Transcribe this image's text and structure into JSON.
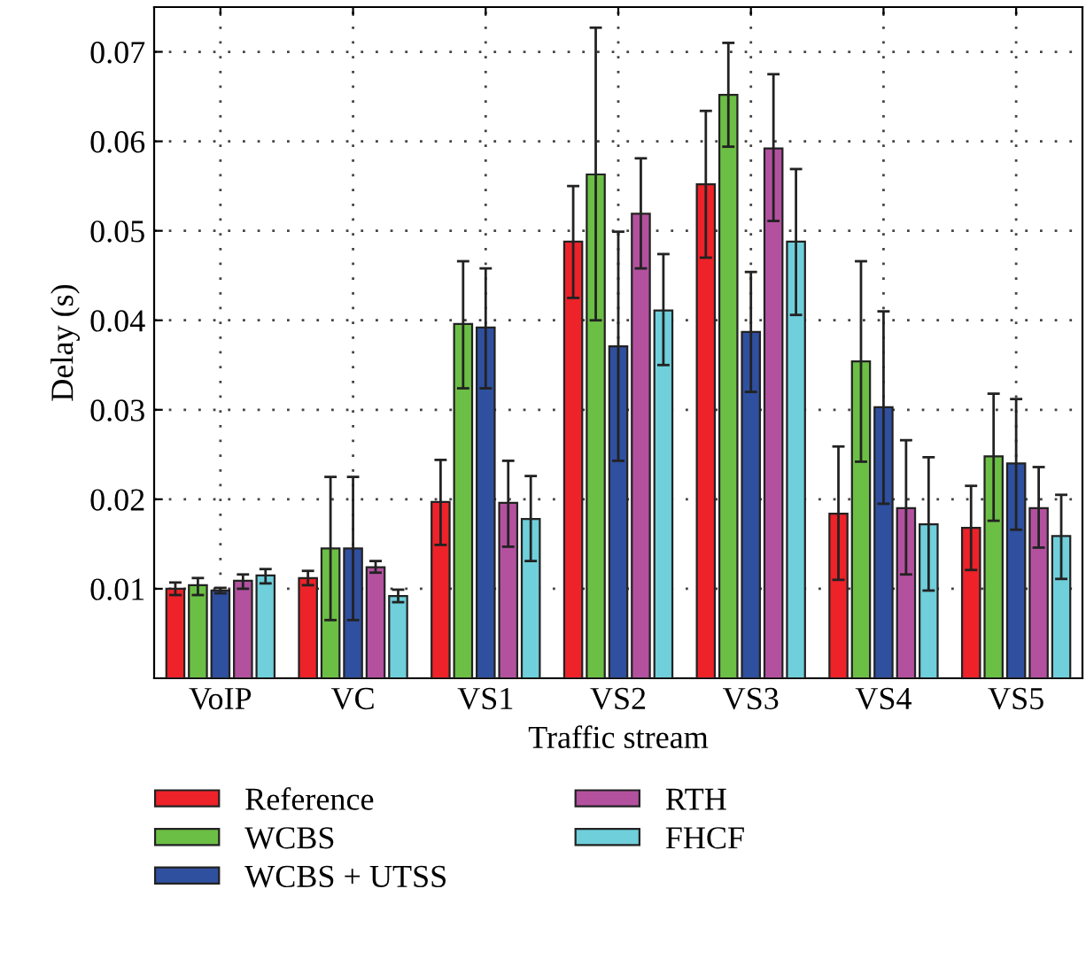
{
  "chart_data": {
    "type": "bar",
    "xlabel": "Traffic stream",
    "ylabel": "Delay (s)",
    "categories": [
      "VoIP",
      "VC",
      "VS1",
      "VS2",
      "VS3",
      "VS4",
      "VS5"
    ],
    "series": [
      {
        "name": "Reference",
        "color": "#ee2229",
        "values": [
          0.01,
          0.0112,
          0.0197,
          0.0488,
          0.0552,
          0.0184,
          0.0168
        ],
        "errors": [
          [
            0.0093,
            0.0107
          ],
          [
            0.0104,
            0.012
          ],
          [
            0.0149,
            0.0244
          ],
          [
            0.0425,
            0.055
          ],
          [
            0.047,
            0.0634
          ],
          [
            0.011,
            0.0259
          ],
          [
            0.0121,
            0.0215
          ]
        ]
      },
      {
        "name": "WCBS",
        "color": "#6cbf45",
        "values": [
          0.0104,
          0.0145,
          0.0396,
          0.0563,
          0.0652,
          0.0354,
          0.0248
        ],
        "errors": [
          [
            0.0093,
            0.0112
          ],
          [
            0.0065,
            0.0225
          ],
          [
            0.0324,
            0.0466
          ],
          [
            0.04,
            0.0727
          ],
          [
            0.0594,
            0.071
          ],
          [
            0.0242,
            0.0466
          ],
          [
            0.0176,
            0.0318
          ]
        ]
      },
      {
        "name": "WCBS + UTSS",
        "color": "#2f4f9f",
        "values": [
          0.0098,
          0.0145,
          0.0392,
          0.0371,
          0.0387,
          0.0303,
          0.024
        ],
        "errors": [
          [
            0.0095,
            0.0101
          ],
          [
            0.0065,
            0.0225
          ],
          [
            0.0324,
            0.0458
          ],
          [
            0.0243,
            0.0499
          ],
          [
            0.032,
            0.0454
          ],
          [
            0.0195,
            0.041
          ],
          [
            0.0166,
            0.0312
          ]
        ]
      },
      {
        "name": "RTH",
        "color": "#b3519f",
        "values": [
          0.0109,
          0.0124,
          0.0196,
          0.0519,
          0.0592,
          0.019,
          0.019
        ],
        "errors": [
          [
            0.01,
            0.0116
          ],
          [
            0.0118,
            0.0131
          ],
          [
            0.0147,
            0.0243
          ],
          [
            0.0458,
            0.0581
          ],
          [
            0.0511,
            0.0675
          ],
          [
            0.0116,
            0.0266
          ],
          [
            0.0146,
            0.0236
          ]
        ]
      },
      {
        "name": "FHCF",
        "color": "#6fcfdb",
        "values": [
          0.0115,
          0.0092,
          0.0178,
          0.0411,
          0.0488,
          0.0172,
          0.0159
        ],
        "errors": [
          [
            0.0106,
            0.0122
          ],
          [
            0.0085,
            0.0099
          ],
          [
            0.0131,
            0.0226
          ],
          [
            0.035,
            0.0474
          ],
          [
            0.0406,
            0.0569
          ],
          [
            0.0098,
            0.0247
          ],
          [
            0.0111,
            0.0205
          ]
        ]
      }
    ],
    "ylim": [
      0,
      0.075
    ],
    "yticks": [
      0.01,
      0.02,
      0.03,
      0.04,
      0.05,
      0.06,
      0.07
    ],
    "grid": true,
    "legend": "bottom"
  }
}
